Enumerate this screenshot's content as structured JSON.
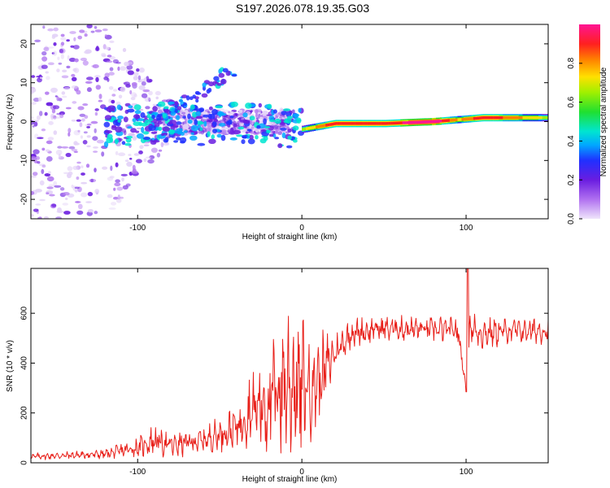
{
  "title": "S197.2026.078.19.35.G03",
  "chart_data": [
    {
      "type": "heatmap",
      "name": "spectrogram",
      "xlabel": "Height of straight line (km)",
      "ylabel": "Frequency (Hz)",
      "xlim": [
        -165,
        150
      ],
      "ylim": [
        -25,
        25
      ],
      "x_ticks": [
        -100,
        0,
        100
      ],
      "y_ticks": [
        -20,
        -10,
        0,
        10,
        20
      ],
      "colorbar": {
        "label": "Normalized spectral amplitude",
        "range": [
          0,
          1
        ],
        "ticks": [
          0.0,
          0.2,
          0.4,
          0.6,
          0.8
        ],
        "colors": [
          "#e6d5f5",
          "#b070f0",
          "#6a1de0",
          "#2030ff",
          "#00a8ff",
          "#00e5d0",
          "#20e030",
          "#a0f000",
          "#ffe000",
          "#ff8000",
          "#ff2020",
          "#ff1493"
        ]
      },
      "ridge": {
        "description": "dominant narrow-band line",
        "x": [
          -120,
          -100,
          -80,
          -60,
          -40,
          -20,
          0,
          20,
          50,
          80,
          95,
          110,
          150
        ],
        "frequency": [
          -1,
          -1,
          0,
          -1,
          0,
          -1,
          -2,
          -0.5,
          -0.5,
          0,
          0.5,
          1,
          1
        ],
        "amplitude": [
          0.3,
          0.35,
          0.35,
          0.3,
          0.3,
          0.3,
          0.5,
          0.8,
          0.75,
          0.9,
          0.6,
          0.8,
          0.5
        ]
      }
    },
    {
      "type": "line",
      "name": "snr",
      "xlabel": "Height of straight line (km)",
      "ylabel": "SNR (10 * v/v)",
      "xlim": [
        -165,
        150
      ],
      "ylim": [
        0,
        780
      ],
      "x_ticks": [
        -100,
        0,
        100
      ],
      "y_ticks": [
        0,
        200,
        400,
        600
      ],
      "color": "#e8201a",
      "envelope": {
        "x": [
          -165,
          -140,
          -120,
          -100,
          -90,
          -80,
          -60,
          -40,
          -30,
          -20,
          -10,
          0,
          10,
          20,
          30,
          50,
          80,
          95,
          100,
          102,
          110,
          130,
          150
        ],
        "mean": [
          25,
          30,
          35,
          60,
          90,
          70,
          90,
          140,
          220,
          240,
          330,
          300,
          330,
          440,
          520,
          540,
          535,
          530,
          300,
          540,
          520,
          530,
          530
        ],
        "spread": [
          10,
          12,
          15,
          30,
          50,
          40,
          40,
          70,
          120,
          180,
          250,
          220,
          150,
          60,
          45,
          40,
          40,
          45,
          0,
          60,
          50,
          40,
          40
        ]
      },
      "spike": {
        "x": 101,
        "value": 780
      },
      "dip": {
        "x": 100,
        "value": 285
      }
    }
  ]
}
